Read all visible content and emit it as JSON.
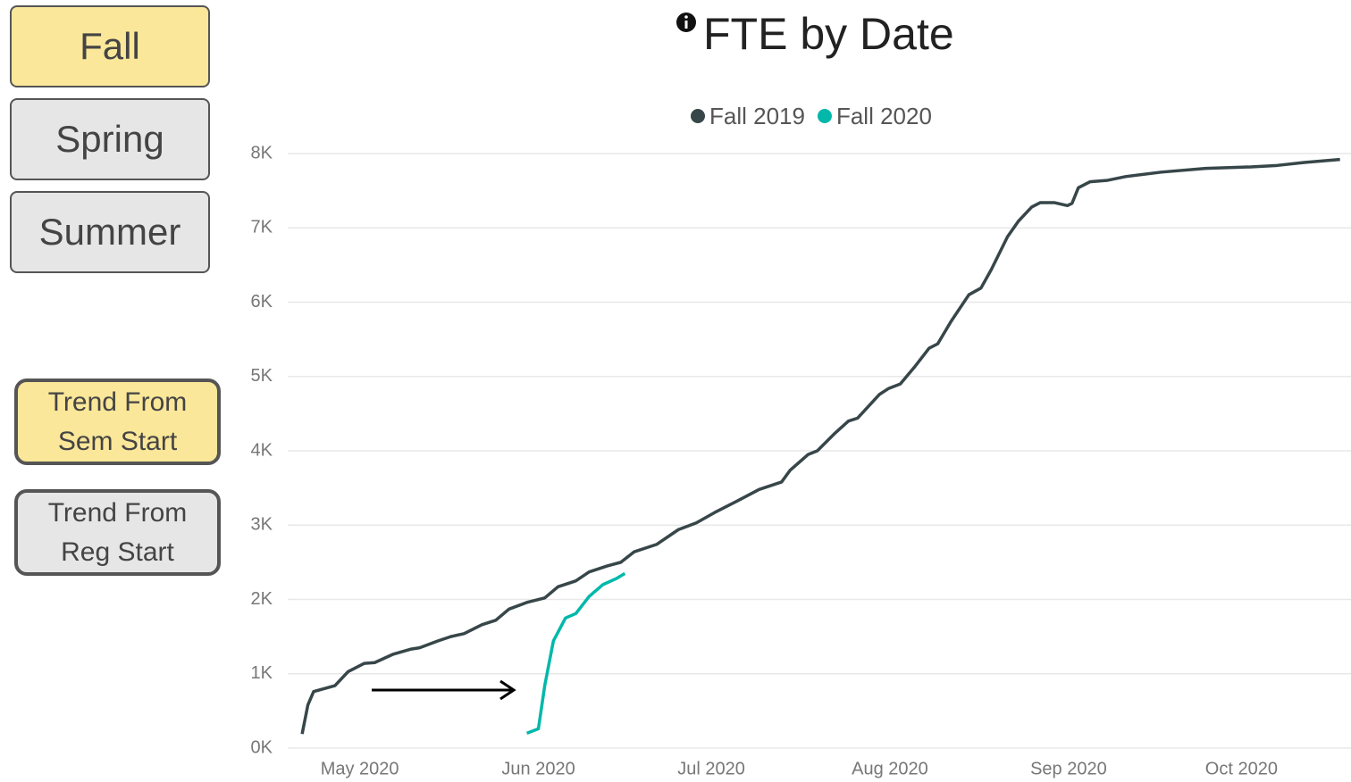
{
  "buttons": [
    "Fall",
    "Spring",
    "Summer"
  ],
  "trend_buttons": [
    "Trend From Sem Start",
    "Trend From Reg Start"
  ],
  "chart_data": {
    "type": "line",
    "title": "FTE by Date",
    "series": [
      {
        "name": "Fall 2019",
        "color": "#374649",
        "x": [
          -10,
          -9,
          -8,
          -4.3,
          -2,
          0.8,
          2.6,
          5.7,
          8.8,
          10.4,
          13.5,
          15.8,
          18.1,
          21.2,
          23.6,
          25.9,
          29,
          32.1,
          34.4,
          37.5,
          39.8,
          42.9,
          45.3,
          47.6,
          51.5,
          55.3,
          58.4,
          61.6,
          65.4,
          69.3,
          73.2,
          74.7,
          77.8,
          79.4,
          82.5,
          84.8,
          86.4,
          90.2,
          91.8,
          93.8,
          96.4,
          98.8,
          100.3,
          102.6,
          105.7,
          107.8,
          109.6,
          112.4,
          114.3,
          116.6,
          118.1,
          120.5,
          122.8,
          123.6,
          124.7,
          126.7,
          129.8,
          132.9,
          139.1,
          146.8,
          154.6,
          159.2,
          163.9,
          170.1
        ],
        "values": [
          190,
          580,
          760,
          840,
          1030,
          1140,
          1150,
          1260,
          1330,
          1350,
          1440,
          1500,
          1540,
          1660,
          1720,
          1870,
          1960,
          2020,
          2170,
          2250,
          2370,
          2450,
          2500,
          2640,
          2740,
          2940,
          3030,
          3170,
          3320,
          3480,
          3580,
          3740,
          3950,
          4000,
          4240,
          4400,
          4440,
          4760,
          4840,
          4900,
          5140,
          5380,
          5440,
          5740,
          6100,
          6190,
          6440,
          6880,
          7090,
          7280,
          7340,
          7340,
          7300,
          7330,
          7540,
          7620,
          7640,
          7690,
          7750,
          7800,
          7820,
          7840,
          7880,
          7920
        ]
      },
      {
        "name": "Fall 2020",
        "color": "#01b8aa",
        "x": [
          29,
          31,
          32.1,
          33.6,
          35.7,
          37.5,
          39.8,
          42.2,
          44.5,
          46
        ],
        "values": [
          200,
          260,
          840,
          1440,
          1750,
          1810,
          2040,
          2200,
          2280,
          2350
        ]
      }
    ],
    "xlim": [
      -12.5,
      171.7
    ],
    "xticks": [
      {
        "value": 0,
        "label": "May 2020"
      },
      {
        "value": 31,
        "label": "Jun 2020"
      },
      {
        "value": 61,
        "label": "Jul 2020"
      },
      {
        "value": 92,
        "label": "Aug 2020"
      },
      {
        "value": 123,
        "label": "Sep 2020"
      },
      {
        "value": 153,
        "label": "Oct 2020"
      }
    ],
    "ylim": [
      0,
      8000
    ],
    "yticks": [
      {
        "value": 0,
        "label": "0K"
      },
      {
        "value": 1000,
        "label": "1K"
      },
      {
        "value": 2000,
        "label": "2K"
      },
      {
        "value": 3000,
        "label": "3K"
      },
      {
        "value": 4000,
        "label": "4K"
      },
      {
        "value": 5000,
        "label": "5K"
      },
      {
        "value": 6000,
        "label": "6K"
      },
      {
        "value": 7000,
        "label": "7K"
      },
      {
        "value": 8000,
        "label": "8K"
      }
    ],
    "grid": true
  }
}
